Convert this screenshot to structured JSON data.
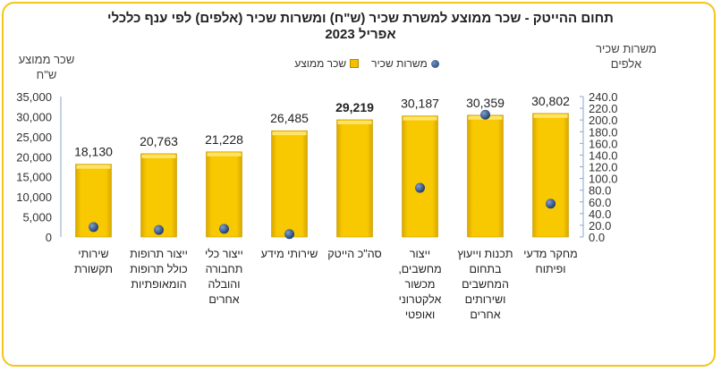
{
  "chart_data": {
    "type": "bar",
    "title": "תחום ההייטק -  שכר ממוצע למשרת שכיר (ש\"ח) ומשרות שכיר (אלפים) לפי ענף כלכלי",
    "subtitle": "אפריל 2023",
    "ylabel_left": "שכר ממוצע ש\"ח",
    "ylabel_right": "משרות שכיר אלפים",
    "ylim_left": [
      0,
      35000
    ],
    "yticks_left": [
      "35,000",
      "30,000",
      "25,000",
      "20,000",
      "15,000",
      "10,000",
      "5,000",
      "0"
    ],
    "ylim_right": [
      0,
      240
    ],
    "yticks_right": [
      "240.0",
      "220.0",
      "200.0",
      "180.0",
      "160.0",
      "140.0",
      "120.0",
      "100.0",
      "80.0",
      "60.0",
      "40.0",
      "20.0",
      "0.0"
    ],
    "legend": [
      "משרות שכיר",
      "שכר ממוצע"
    ],
    "legend_position": "top-center",
    "colors": {
      "bar": "#f5c000",
      "dot": "#1f3f70",
      "axis": "#8aa6cc"
    },
    "categories": [
      "שירותי תקשורת",
      "ייצור תרופות כולל תרופות הומאופתיות",
      "ייצור כלי תחבורה והובלה אחרים",
      "שירותי מידע",
      "סה\"כ הייטק",
      "ייצור מחשבים, מכשור אלקטרוני ואופטי",
      "תכנות וייעוץ בתחום המחשבים ושירותים אחרים",
      "מחקר מדעי ופיתוח"
    ],
    "series": [
      {
        "name": "שכר ממוצע",
        "type": "bar",
        "axis": "left",
        "values": [
          18130,
          20763,
          21228,
          26485,
          29219,
          30187,
          30359,
          30802
        ],
        "labels": [
          "18,130",
          "20,763",
          "21,228",
          "26,485",
          "29,219",
          "30,187",
          "30,359",
          "30,802"
        ]
      },
      {
        "name": "משרות שכיר",
        "type": "scatter",
        "axis": "right",
        "values": [
          17,
          12,
          14,
          5,
          null,
          84,
          209,
          57
        ]
      }
    ]
  }
}
